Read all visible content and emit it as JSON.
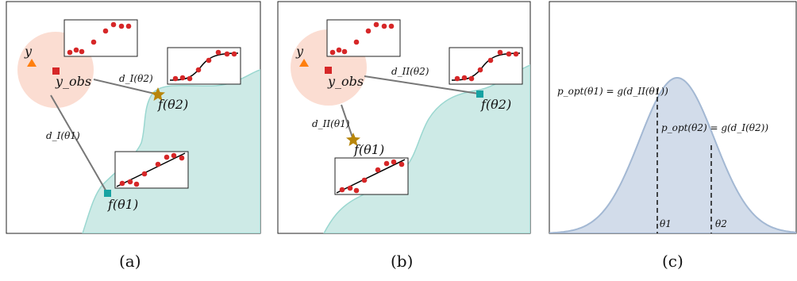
{
  "panels": {
    "a": {
      "caption": "(a)",
      "y_label": "y",
      "yobs_label": "y_obs",
      "d2_label": "d_I(θ2)",
      "d1_label": "d_I(θ1)",
      "f2_label": "f(θ2)",
      "f1_label": "f(θ1)"
    },
    "b": {
      "caption": "(b)",
      "y_label": "y",
      "yobs_label": "y_obs",
      "d2_label": "d_II(θ2)",
      "d1_label": "d_II(θ1)",
      "f2_label": "f(θ2)",
      "f1_label": "f(θ1)"
    },
    "c": {
      "caption": "(c)",
      "eq1": "p_opt(θ1) = g(d_II(θ1))",
      "eq2": "p_opt(θ2) = g(d_I(θ2))",
      "theta1": "θ1",
      "theta2": "θ2"
    }
  },
  "colors": {
    "observed_circle": "#fbd9cd",
    "region_fill": "#cdeae6",
    "region_stroke": "#9ad7d0",
    "marker_red": "#d62728",
    "marker_orange": "#ff7f0e",
    "star": "#b8860b",
    "teal_square": "#17a2a2",
    "gaussian_fill": "#d2dcea",
    "gaussian_stroke": "#a3b8d3"
  }
}
